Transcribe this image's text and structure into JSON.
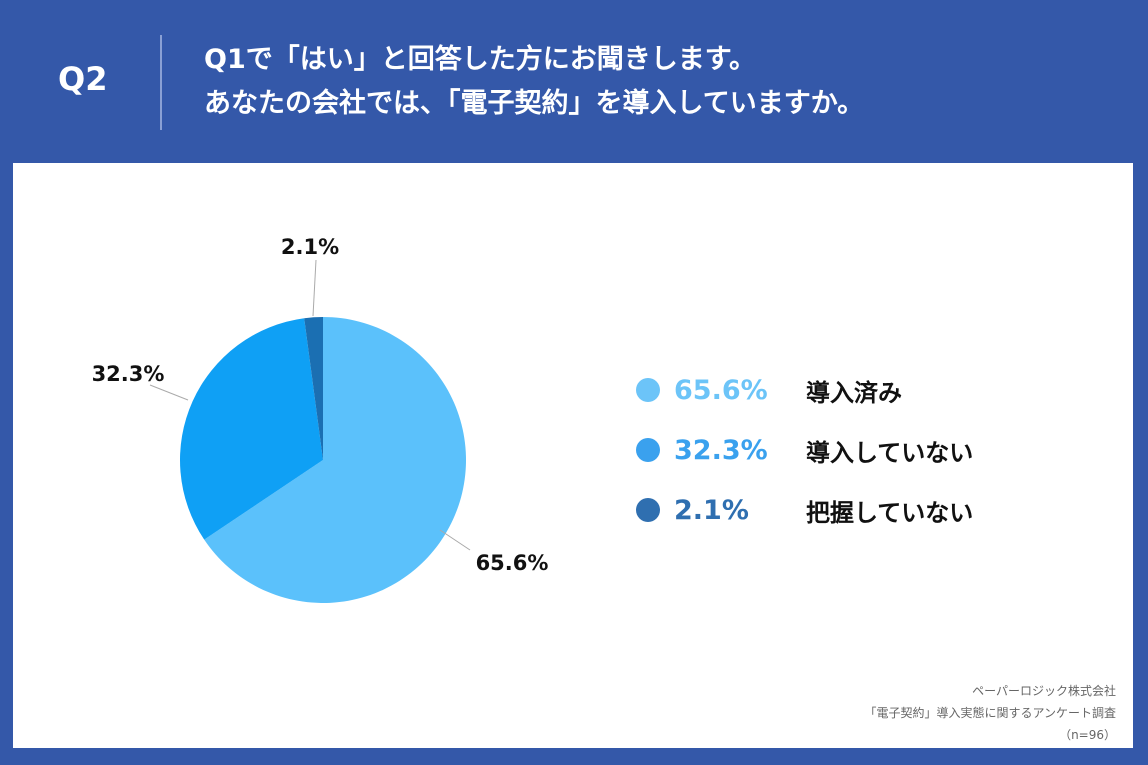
{
  "header": {
    "question_no": "Q2",
    "title_line1": "Q1で「はい」と回答した方にお聞きします。",
    "title_line2": "あなたの会社では、「電子契約」を導入していますか。"
  },
  "chart_data": {
    "type": "pie",
    "start": "top",
    "direction": "clockwise",
    "slices": [
      {
        "label": "導入済み",
        "value": 65.6,
        "value_label": "65.6%",
        "color": "#5bc1fb",
        "legend_color": "#6cc4f8"
      },
      {
        "label": "導入していない",
        "value": 32.3,
        "value_label": "32.3%",
        "color": "#0fa0f5",
        "legend_color": "#3aa1ee"
      },
      {
        "label": "把握していない",
        "value": 2.1,
        "value_label": "2.1%",
        "color": "#1b6fb2",
        "legend_color": "#2f6fb0"
      }
    ],
    "legend": "right"
  },
  "source": {
    "line1": "ペーパーロジック株式会社",
    "line2": "「電子契約」導入実態に関するアンケート調査",
    "line3": "（n=96）"
  },
  "colors": {
    "background": "#3458a9",
    "panel": "#ffffff"
  }
}
